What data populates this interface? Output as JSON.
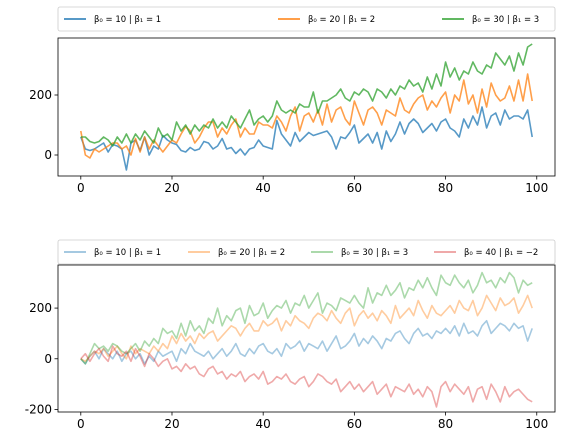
{
  "chart_data": [
    {
      "type": "line",
      "x_ticks": [
        0,
        20,
        40,
        60,
        80,
        100
      ],
      "y_ticks": [
        0,
        200
      ],
      "xlim": [
        -5,
        104
      ],
      "ylim": [
        -70,
        390
      ],
      "grid": false,
      "legend_placement": "top, above axes",
      "line_opacity": 0.75,
      "series": [
        {
          "name": "β₀ = 10 | β₁ = 1",
          "color": "#1f77b4",
          "values": [
            60,
            20,
            15,
            20,
            30,
            40,
            10,
            35,
            30,
            20,
            -50,
            40,
            50,
            15,
            60,
            0,
            30,
            20,
            65,
            50,
            40,
            35,
            15,
            10,
            25,
            15,
            20,
            45,
            40,
            20,
            30,
            55,
            20,
            25,
            5,
            20,
            0,
            20,
            25,
            50,
            30,
            25,
            20,
            115,
            70,
            50,
            30,
            75,
            45,
            60,
            75,
            65,
            70,
            75,
            80,
            60,
            20,
            60,
            55,
            75,
            100,
            40,
            55,
            70,
            40,
            75,
            20,
            80,
            45,
            70,
            110,
            70,
            105,
            120,
            105,
            75,
            90,
            105,
            80,
            110,
            120,
            90,
            80,
            60,
            120,
            90,
            130,
            100,
            160,
            90,
            130,
            140,
            100,
            150,
            120,
            130,
            130,
            120,
            150,
            60
          ]
        },
        {
          "name": "β₀ = 20 | β₁ = 2",
          "color": "#ff7f0e",
          "values": [
            80,
            0,
            -10,
            20,
            10,
            20,
            30,
            40,
            40,
            20,
            30,
            0,
            55,
            10,
            60,
            20,
            50,
            30,
            10,
            30,
            50,
            40,
            70,
            95,
            80,
            40,
            60,
            90,
            110,
            110,
            60,
            90,
            70,
            100,
            120,
            60,
            90,
            70,
            70,
            110,
            100,
            100,
            90,
            130,
            110,
            80,
            130,
            160,
            80,
            130,
            140,
            110,
            150,
            100,
            170,
            110,
            150,
            160,
            120,
            100,
            180,
            140,
            100,
            150,
            160,
            140,
            100,
            150,
            140,
            130,
            190,
            150,
            140,
            170,
            190,
            200,
            150,
            180,
            160,
            190,
            210,
            140,
            200,
            180,
            250,
            170,
            200,
            140,
            220,
            160,
            240,
            200,
            180,
            190,
            230,
            180,
            250,
            180,
            270,
            180
          ]
        },
        {
          "name": "β₀ = 30 | β₁ = 3",
          "color": "#2ca02c",
          "values": [
            60,
            60,
            45,
            40,
            45,
            60,
            50,
            30,
            60,
            40,
            70,
            40,
            70,
            50,
            80,
            60,
            40,
            90,
            60,
            70,
            50,
            110,
            80,
            100,
            70,
            100,
            80,
            100,
            90,
            120,
            90,
            110,
            90,
            130,
            110,
            90,
            120,
            150,
            100,
            120,
            130,
            110,
            130,
            180,
            150,
            140,
            150,
            140,
            170,
            160,
            160,
            210,
            140,
            180,
            180,
            190,
            200,
            220,
            190,
            180,
            210,
            200,
            220,
            210,
            180,
            220,
            210,
            190,
            220,
            200,
            230,
            220,
            250,
            230,
            240,
            210,
            260,
            220,
            270,
            230,
            310,
            260,
            290,
            250,
            280,
            270,
            310,
            280,
            270,
            300,
            290,
            340,
            320,
            300,
            330,
            280,
            340,
            300,
            360,
            370
          ]
        }
      ]
    },
    {
      "type": "line",
      "x_ticks": [
        0,
        20,
        40,
        60,
        80,
        100
      ],
      "y_ticks": [
        -200,
        0,
        200
      ],
      "xlim": [
        -5,
        104
      ],
      "ylim": [
        -210,
        370
      ],
      "grid": false,
      "legend_placement": "top, above axes",
      "line_opacity": 0.4,
      "series": [
        {
          "name": "β₀ = 10 | β₁ = 1",
          "color": "#1f77b4",
          "values": [
            0,
            -20,
            10,
            30,
            0,
            40,
            20,
            0,
            30,
            -10,
            20,
            30,
            0,
            20,
            -20,
            10,
            -10,
            30,
            10,
            20,
            30,
            -10,
            40,
            20,
            60,
            30,
            20,
            10,
            30,
            0,
            20,
            40,
            10,
            30,
            60,
            20,
            10,
            40,
            20,
            50,
            60,
            30,
            20,
            40,
            10,
            60,
            40,
            50,
            70,
            30,
            60,
            50,
            40,
            70,
            30,
            60,
            90,
            40,
            50,
            70,
            100,
            50,
            80,
            60,
            90,
            70,
            40,
            80,
            70,
            100,
            110,
            80,
            60,
            100,
            120,
            90,
            100,
            80,
            110,
            100,
            120,
            100,
            130,
            90,
            140,
            100,
            110,
            90,
            130,
            150,
            100,
            120,
            140,
            130,
            110,
            140,
            120,
            130,
            70,
            120
          ]
        },
        {
          "name": "β₀ = 20 | β₁ = 2",
          "color": "#ff7f0e",
          "values": [
            0,
            -10,
            10,
            30,
            20,
            40,
            10,
            30,
            50,
            20,
            0,
            50,
            20,
            40,
            30,
            20,
            50,
            30,
            60,
            40,
            90,
            60,
            100,
            70,
            90,
            60,
            100,
            80,
            100,
            110,
            70,
            90,
            110,
            130,
            120,
            90,
            120,
            140,
            110,
            110,
            150,
            130,
            140,
            160,
            110,
            150,
            130,
            170,
            150,
            140,
            120,
            160,
            180,
            170,
            150,
            190,
            160,
            140,
            180,
            200,
            130,
            170,
            190,
            160,
            180,
            150,
            190,
            170,
            140,
            210,
            160,
            180,
            200,
            170,
            230,
            190,
            160,
            210,
            180,
            170,
            190,
            210,
            180,
            230,
            200,
            190,
            230,
            170,
            200,
            250,
            220,
            190,
            240,
            210,
            220,
            240,
            180,
            210,
            250,
            200
          ]
        },
        {
          "name": "β₀ = 30 | β₁ = 3",
          "color": "#2ca02c",
          "values": [
            0,
            -20,
            20,
            60,
            40,
            50,
            30,
            60,
            50,
            30,
            20,
            40,
            60,
            30,
            70,
            50,
            80,
            60,
            120,
            100,
            110,
            80,
            140,
            90,
            150,
            110,
            130,
            100,
            160,
            140,
            200,
            130,
            170,
            150,
            190,
            200,
            140,
            210,
            170,
            180,
            220,
            160,
            190,
            210,
            200,
            230,
            180,
            220,
            210,
            250,
            200,
            230,
            260,
            180,
            220,
            210,
            190,
            240,
            230,
            220,
            250,
            220,
            200,
            280,
            220,
            260,
            250,
            290,
            250,
            270,
            300,
            240,
            280,
            270,
            310,
            280,
            320,
            280,
            250,
            330,
            300,
            290,
            330,
            300,
            280,
            310,
            260,
            290,
            340,
            300,
            310,
            280,
            320,
            300,
            340,
            320,
            260,
            310,
            290,
            300
          ]
        },
        {
          "name": "β₀ = 40 | β₁ = −2",
          "color": "#d62728",
          "values": [
            0,
            20,
            -10,
            20,
            40,
            10,
            -10,
            50,
            20,
            10,
            30,
            -10,
            40,
            10,
            -30,
            20,
            0,
            -30,
            -10,
            0,
            -40,
            -30,
            -50,
            -20,
            -40,
            -30,
            -60,
            -70,
            -40,
            -30,
            -60,
            -50,
            -80,
            -60,
            -70,
            -50,
            -90,
            -70,
            -60,
            -80,
            -50,
            -100,
            -90,
            -70,
            -80,
            -60,
            -90,
            -100,
            -80,
            -70,
            -110,
            -90,
            -60,
            -70,
            -90,
            -100,
            -80,
            -130,
            -110,
            -90,
            -120,
            -100,
            -130,
            -110,
            -90,
            -140,
            -120,
            -100,
            -150,
            -110,
            -120,
            -130,
            -100,
            -140,
            -120,
            -150,
            -110,
            -130,
            -190,
            -110,
            -90,
            -130,
            -100,
            -120,
            -140,
            -110,
            -170,
            -120,
            -110,
            -160,
            -100,
            -130,
            -170,
            -110,
            -150,
            -130,
            -120,
            -140,
            -160,
            -170
          ]
        }
      ]
    }
  ]
}
